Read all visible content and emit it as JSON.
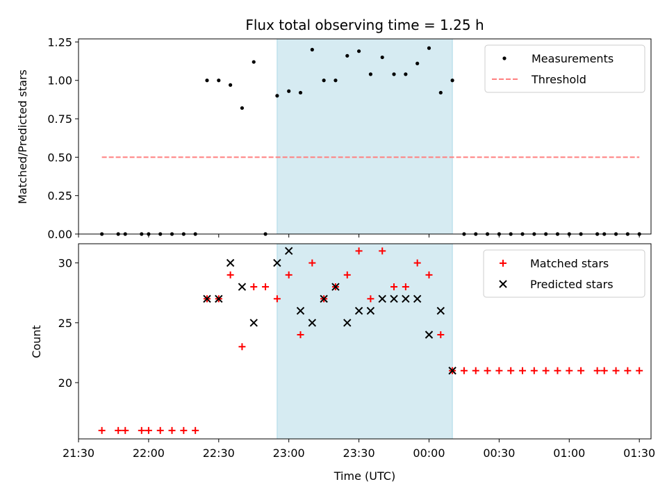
{
  "chart_data": [
    {
      "type": "scatter",
      "title": "Flux total observing time = 1.25 h",
      "xlabel": "",
      "ylabel": "Matched/Predicted stars",
      "x_unit": "time (UTC)",
      "xlim": [
        "21:30",
        "01:35"
      ],
      "ylim": [
        0,
        1.27
      ],
      "yticks": [
        "0.00",
        "0.25",
        "0.50",
        "0.75",
        "1.00",
        "1.25"
      ],
      "shaded_region": {
        "x_start": "22:55",
        "x_end": "00:10",
        "color": "#add8e6"
      },
      "legend": {
        "placement": "top-right",
        "entries": [
          "Measurements",
          "Threshold"
        ]
      },
      "series": [
        {
          "name": "Measurements",
          "marker": "dot",
          "color": "#000000",
          "points": [
            [
              "21:40",
              0
            ],
            [
              "21:47",
              0
            ],
            [
              "21:50",
              0
            ],
            [
              "21:57",
              0
            ],
            [
              "22:00",
              0
            ],
            [
              "22:05",
              0
            ],
            [
              "22:10",
              0
            ],
            [
              "22:15",
              0
            ],
            [
              "22:20",
              0
            ],
            [
              "22:25",
              1.0
            ],
            [
              "22:30",
              1.0
            ],
            [
              "22:35",
              0.97
            ],
            [
              "22:40",
              0.82
            ],
            [
              "22:45",
              1.12
            ],
            [
              "22:50",
              0
            ],
            [
              "22:55",
              0.9
            ],
            [
              "23:00",
              0.93
            ],
            [
              "23:05",
              0.92
            ],
            [
              "23:10",
              1.2
            ],
            [
              "23:15",
              1.0
            ],
            [
              "23:20",
              1.0
            ],
            [
              "23:25",
              1.16
            ],
            [
              "23:30",
              1.19
            ],
            [
              "23:35",
              1.04
            ],
            [
              "23:40",
              1.15
            ],
            [
              "23:45",
              1.04
            ],
            [
              "23:50",
              1.04
            ],
            [
              "23:55",
              1.11
            ],
            [
              "00:00",
              1.21
            ],
            [
              "00:05",
              0.92
            ],
            [
              "00:10",
              1.0
            ],
            [
              "00:15",
              0
            ],
            [
              "00:20",
              0
            ],
            [
              "00:25",
              0
            ],
            [
              "00:30",
              0
            ],
            [
              "00:35",
              0
            ],
            [
              "00:40",
              0
            ],
            [
              "00:45",
              0
            ],
            [
              "00:50",
              0
            ],
            [
              "00:55",
              0
            ],
            [
              "01:00",
              0
            ],
            [
              "01:05",
              0
            ],
            [
              "01:12",
              0
            ],
            [
              "01:15",
              0
            ],
            [
              "01:20",
              0
            ],
            [
              "01:25",
              0
            ],
            [
              "01:30",
              0
            ]
          ]
        },
        {
          "name": "Threshold",
          "type": "line",
          "style": "dashed",
          "color": "#ff7f7f",
          "points": [
            [
              "21:40",
              0.5
            ],
            [
              "01:30",
              0.5
            ]
          ]
        }
      ]
    },
    {
      "type": "scatter",
      "title": "",
      "xlabel": "Time (UTC)",
      "ylabel": "Count",
      "xlim": [
        "21:30",
        "01:35"
      ],
      "ylim": [
        15.3,
        31.6
      ],
      "xticks": [
        "21:30",
        "22:00",
        "22:30",
        "23:00",
        "23:30",
        "00:00",
        "00:30",
        "01:00",
        "01:30"
      ],
      "yticks": [
        "20",
        "25",
        "30"
      ],
      "shaded_region": {
        "x_start": "22:55",
        "x_end": "00:10",
        "color": "#add8e6"
      },
      "legend": {
        "placement": "top-right",
        "entries": [
          "Matched stars",
          "Predicted stars"
        ]
      },
      "series": [
        {
          "name": "Matched stars",
          "marker": "plus",
          "color": "#ff0000",
          "points": [
            [
              "21:40",
              16
            ],
            [
              "21:47",
              16
            ],
            [
              "21:50",
              16
            ],
            [
              "21:57",
              16
            ],
            [
              "22:00",
              16
            ],
            [
              "22:05",
              16
            ],
            [
              "22:10",
              16
            ],
            [
              "22:15",
              16
            ],
            [
              "22:20",
              16
            ],
            [
              "22:25",
              27
            ],
            [
              "22:30",
              27
            ],
            [
              "22:35",
              29
            ],
            [
              "22:40",
              23
            ],
            [
              "22:45",
              28
            ],
            [
              "22:50",
              28
            ],
            [
              "22:55",
              27
            ],
            [
              "23:00",
              29
            ],
            [
              "23:05",
              24
            ],
            [
              "23:10",
              30
            ],
            [
              "23:15",
              27
            ],
            [
              "23:20",
              28
            ],
            [
              "23:25",
              29
            ],
            [
              "23:30",
              31
            ],
            [
              "23:35",
              27
            ],
            [
              "23:40",
              31
            ],
            [
              "23:45",
              28
            ],
            [
              "23:50",
              28
            ],
            [
              "23:55",
              30
            ],
            [
              "00:00",
              29
            ],
            [
              "00:05",
              24
            ],
            [
              "00:10",
              21
            ],
            [
              "00:15",
              21
            ],
            [
              "00:20",
              21
            ],
            [
              "00:25",
              21
            ],
            [
              "00:30",
              21
            ],
            [
              "00:35",
              21
            ],
            [
              "00:40",
              21
            ],
            [
              "00:45",
              21
            ],
            [
              "00:50",
              21
            ],
            [
              "00:55",
              21
            ],
            [
              "01:00",
              21
            ],
            [
              "01:05",
              21
            ],
            [
              "01:12",
              21
            ],
            [
              "01:15",
              21
            ],
            [
              "01:20",
              21
            ],
            [
              "01:25",
              21
            ],
            [
              "01:30",
              21
            ]
          ]
        },
        {
          "name": "Predicted stars",
          "marker": "x",
          "color": "#000000",
          "points": [
            [
              "22:25",
              27
            ],
            [
              "22:30",
              27
            ],
            [
              "22:35",
              30
            ],
            [
              "22:40",
              28
            ],
            [
              "22:45",
              25
            ],
            [
              "22:55",
              30
            ],
            [
              "23:00",
              31
            ],
            [
              "23:05",
              26
            ],
            [
              "23:10",
              25
            ],
            [
              "23:15",
              27
            ],
            [
              "23:20",
              28
            ],
            [
              "23:25",
              25
            ],
            [
              "23:30",
              26
            ],
            [
              "23:35",
              26
            ],
            [
              "23:40",
              27
            ],
            [
              "23:45",
              27
            ],
            [
              "23:50",
              27
            ],
            [
              "23:55",
              27
            ],
            [
              "00:00",
              24
            ],
            [
              "00:05",
              26
            ],
            [
              "00:10",
              21
            ]
          ]
        }
      ]
    }
  ]
}
